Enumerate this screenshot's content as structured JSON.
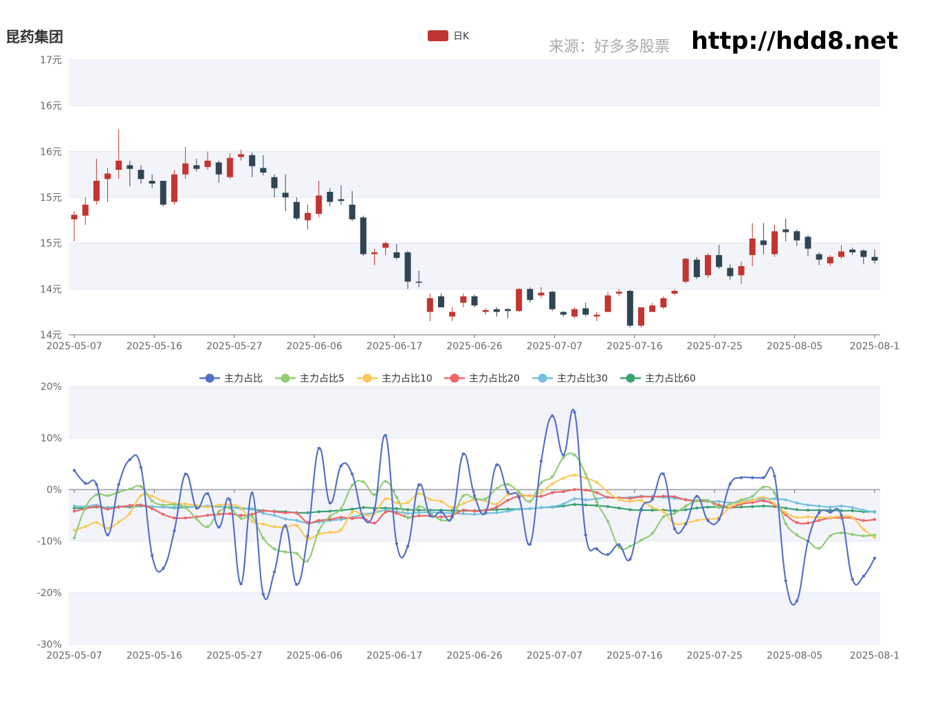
{
  "header": {
    "title": "昆药集团",
    "source": "来源：好多多股票",
    "url": "http://hdd8.net"
  },
  "colors": {
    "up": "#c23531",
    "down": "#2f4554",
    "band": "#f3f4fa",
    "grid": "#e0e6f1",
    "axis": "#6e7079"
  },
  "chart_data": [
    {
      "type": "candlestick",
      "legend": [
        "日K"
      ],
      "x_tick_labels": [
        "2025-05-07",
        "2025-05-16",
        "2025-05-27",
        "2025-06-06",
        "2025-06-17",
        "2025-06-26",
        "2025-07-07",
        "2025-07-16",
        "2025-07-25",
        "2025-08-05",
        "2025-08-1"
      ],
      "y_tick_labels": [
        "14元",
        "14元",
        "15元",
        "15元",
        "16元",
        "16元",
        "17元"
      ],
      "ylim": [
        13.9,
        16.9
      ],
      "candles": [
        [
          15.16,
          15.21,
          14.92,
          15.25
        ],
        [
          15.2,
          15.32,
          15.1,
          15.4
        ],
        [
          15.36,
          15.58,
          15.32,
          15.82
        ],
        [
          15.6,
          15.66,
          15.35,
          15.72
        ],
        [
          15.7,
          15.8,
          15.6,
          16.14
        ],
        [
          15.75,
          15.71,
          15.52,
          15.8
        ],
        [
          15.7,
          15.6,
          15.55,
          15.75
        ],
        [
          15.58,
          15.55,
          15.5,
          15.65
        ],
        [
          15.58,
          15.32,
          15.3,
          15.58
        ],
        [
          15.35,
          15.65,
          15.32,
          15.7
        ],
        [
          15.65,
          15.77,
          15.6,
          15.95
        ],
        [
          15.75,
          15.71,
          15.68,
          15.82
        ],
        [
          15.73,
          15.8,
          15.7,
          15.9
        ],
        [
          15.78,
          15.65,
          15.56,
          15.8
        ],
        [
          15.62,
          15.83,
          15.6,
          15.88
        ],
        [
          15.84,
          15.87,
          15.8,
          15.92
        ],
        [
          15.86,
          15.74,
          15.62,
          15.89
        ],
        [
          15.72,
          15.67,
          15.64,
          15.86
        ],
        [
          15.62,
          15.5,
          15.4,
          15.65
        ],
        [
          15.45,
          15.4,
          15.25,
          15.65
        ],
        [
          15.35,
          15.17,
          15.15,
          15.4
        ],
        [
          15.15,
          15.23,
          15.05,
          15.32
        ],
        [
          15.22,
          15.42,
          15.18,
          15.58
        ],
        [
          15.46,
          15.35,
          15.3,
          15.5
        ],
        [
          15.38,
          15.36,
          15.32,
          15.53
        ],
        [
          15.32,
          15.16,
          15.14,
          15.47
        ],
        [
          15.18,
          14.78,
          14.76,
          15.2
        ],
        [
          14.78,
          14.8,
          14.66,
          14.84
        ],
        [
          14.85,
          14.9,
          14.77,
          14.92
        ],
        [
          14.8,
          14.74,
          14.72,
          14.89
        ],
        [
          14.8,
          14.48,
          14.4,
          14.82
        ],
        [
          14.48,
          14.47,
          14.42,
          14.6
        ],
        [
          14.15,
          14.3,
          14.05,
          14.35
        ],
        [
          14.32,
          14.2,
          14.2,
          14.35
        ],
        [
          14.1,
          14.15,
          14.05,
          14.2
        ],
        [
          14.25,
          14.32,
          14.2,
          14.35
        ],
        [
          14.32,
          14.22,
          14.2,
          14.34
        ],
        [
          14.15,
          14.17,
          14.12,
          14.19
        ],
        [
          14.18,
          14.15,
          14.1,
          14.2
        ],
        [
          14.18,
          14.16,
          14.08,
          14.19
        ],
        [
          14.16,
          14.4,
          14.15,
          14.41
        ],
        [
          14.4,
          14.28,
          14.25,
          14.42
        ],
        [
          14.33,
          14.36,
          14.3,
          14.42
        ],
        [
          14.37,
          14.18,
          14.16,
          14.38
        ],
        [
          14.15,
          14.12,
          14.1,
          14.16
        ],
        [
          14.1,
          14.18,
          14.08,
          14.2
        ],
        [
          14.19,
          14.12,
          14.1,
          14.25
        ],
        [
          14.1,
          14.12,
          14.05,
          14.15
        ],
        [
          14.15,
          14.33,
          14.15,
          14.37
        ],
        [
          14.35,
          14.37,
          14.32,
          14.4
        ],
        [
          14.38,
          14.0,
          13.98,
          14.39
        ],
        [
          14.0,
          14.2,
          13.98,
          14.2
        ],
        [
          14.15,
          14.22,
          14.15,
          14.25
        ],
        [
          14.2,
          14.3,
          14.18,
          14.32
        ],
        [
          14.35,
          14.38,
          14.33,
          14.4
        ],
        [
          14.48,
          14.73,
          14.46,
          14.74
        ],
        [
          14.72,
          14.53,
          14.51,
          14.75
        ],
        [
          14.55,
          14.77,
          14.52,
          14.79
        ],
        [
          14.77,
          14.64,
          14.62,
          14.88
        ],
        [
          14.63,
          14.54,
          14.5,
          14.67
        ],
        [
          14.55,
          14.65,
          14.45,
          14.7
        ],
        [
          14.77,
          14.95,
          14.65,
          15.12
        ],
        [
          14.93,
          14.88,
          14.78,
          15.12
        ],
        [
          14.78,
          15.03,
          14.75,
          15.1
        ],
        [
          15.05,
          15.02,
          14.92,
          15.17
        ],
        [
          15.03,
          14.93,
          14.87,
          15.05
        ],
        [
          14.97,
          14.84,
          14.76,
          14.99
        ],
        [
          14.78,
          14.72,
          14.66,
          14.8
        ],
        [
          14.68,
          14.75,
          14.65,
          14.77
        ],
        [
          14.75,
          14.81,
          14.73,
          14.88
        ],
        [
          14.83,
          14.8,
          14.77,
          14.85
        ],
        [
          14.82,
          14.75,
          14.67,
          14.83
        ],
        [
          14.75,
          14.71,
          14.68,
          14.83
        ]
      ]
    },
    {
      "type": "line",
      "x_tick_labels": [
        "2025-05-07",
        "2025-05-16",
        "2025-05-27",
        "2025-06-06",
        "2025-06-17",
        "2025-06-26",
        "2025-07-07",
        "2025-07-16",
        "2025-07-25",
        "2025-08-05",
        "2025-08-1"
      ],
      "y_tick_labels": [
        "-30%",
        "-20%",
        "-10%",
        "0%",
        "10%",
        "20%"
      ],
      "ylim": [
        -30,
        20
      ],
      "series": [
        {
          "name": "主力占比",
          "color": "#5470c6",
          "values": [
            3.7,
            1.2,
            1.0,
            -8.8,
            1.0,
            5.8,
            4.3,
            -12.8,
            -15.3,
            -8.0,
            3.0,
            -3.6,
            -0.8,
            -7.3,
            -2.0,
            -18.3,
            -0.7,
            -20.3,
            -16.0,
            -7.0,
            -18.4,
            -9.0,
            8.0,
            -2.6,
            4.6,
            3.0,
            -5.4,
            -4.0,
            10.5,
            -10.5,
            -11.0,
            0.9,
            -5.0,
            -4.3,
            -5.3,
            6.9,
            -1.2,
            -4.5,
            4.8,
            -0.5,
            -1.5,
            -10.6,
            5.5,
            14.3,
            6.7,
            15.0,
            -8.8,
            -11.5,
            -12.6,
            -10.7,
            -13.5,
            -3.8,
            -1.9,
            3.0,
            -7.6,
            -6.7,
            -1.3,
            -6.0,
            -5.8,
            1.1,
            2.3,
            2.3,
            2.3,
            2.6,
            -17.7,
            -21.6,
            -10.0,
            -4.5,
            -4.4,
            -5.0,
            -17.4,
            -16.8,
            -13.3
          ]
        },
        {
          "name": "主力占比5",
          "color": "#91cc75",
          "values": [
            -9.4,
            -3.5,
            -1.0,
            -1.2,
            -0.5,
            0.1,
            0.6,
            -2.2,
            -3.0,
            -2.9,
            -3.5,
            -5.7,
            -7.2,
            -4.3,
            -3.6,
            -5.6,
            -5.3,
            -9.4,
            -11.5,
            -12.1,
            -12.4,
            -13.8,
            -8.0,
            -5.2,
            -3.7,
            0.8,
            1.5,
            -1.0,
            1.6,
            -1.5,
            -5.5,
            -3.3,
            -4.5,
            -5.9,
            -5.3,
            -1.2,
            -1.7,
            -1.8,
            0.2,
            1.0,
            -0.5,
            -2.3,
            1.3,
            2.5,
            6.2,
            6.7,
            3.0,
            -2.4,
            -6.2,
            -11.2,
            -11.0,
            -9.8,
            -8.5,
            -5.3,
            -4.6,
            -3.2,
            -2.2,
            -2.1,
            -3.5,
            -2.8,
            -2.0,
            -1.3,
            0.5,
            -0.7,
            -6.6,
            -8.8,
            -10.0,
            -11.4,
            -9.0,
            -8.4,
            -8.7,
            -9.0,
            -8.8
          ]
        },
        {
          "name": "主力占比10",
          "color": "#fac858",
          "values": [
            -7.9,
            -7.2,
            -6.4,
            -7.5,
            -6.3,
            -4.6,
            -1.2,
            -1.3,
            -2.2,
            -2.7,
            -2.8,
            -3.1,
            -3.4,
            -3.0,
            -2.9,
            -3.6,
            -6.2,
            -6.7,
            -7.2,
            -7.3,
            -7.0,
            -9.5,
            -8.6,
            -8.3,
            -7.8,
            -4.4,
            -4.9,
            -4.7,
            -1.8,
            -2.6,
            -2.5,
            -0.8,
            -1.9,
            -2.3,
            -3.5,
            -2.7,
            -2.0,
            -2.2,
            -2.8,
            -1.0,
            -0.8,
            -1.3,
            -0.5,
            1.1,
            2.2,
            2.8,
            2.2,
            1.4,
            -0.5,
            -1.9,
            -2.3,
            -2.1,
            -3.5,
            -4.3,
            -6.6,
            -6.5,
            -6.0,
            -5.7,
            -5.4,
            -3.4,
            -2.5,
            -2.1,
            -1.5,
            -2.8,
            -4.5,
            -5.4,
            -5.3,
            -5.4,
            -5.4,
            -5.2,
            -5.4,
            -7.7,
            -9.3
          ]
        },
        {
          "name": "主力占比20",
          "color": "#ee6666",
          "values": [
            -4.2,
            -3.7,
            -3.3,
            -3.8,
            -3.4,
            -3.1,
            -3.0,
            -3.7,
            -4.8,
            -5.5,
            -5.5,
            -5.3,
            -5.0,
            -4.8,
            -4.7,
            -5.0,
            -4.8,
            -4.1,
            -4.3,
            -4.5,
            -4.6,
            -6.4,
            -6.0,
            -5.8,
            -5.4,
            -5.6,
            -5.5,
            -6.5,
            -4.4,
            -4.6,
            -5.4,
            -5.1,
            -5.1,
            -5.3,
            -5.0,
            -4.0,
            -4.2,
            -4.0,
            -3.4,
            -2.1,
            -1.3,
            -1.2,
            -1.3,
            -0.6,
            -0.4,
            0.0,
            -0.1,
            -0.6,
            -1.5,
            -1.6,
            -1.7,
            -1.4,
            -1.4,
            -1.3,
            -1.4,
            -2.0,
            -2.2,
            -2.2,
            -3.0,
            -3.5,
            -2.8,
            -2.5,
            -2.2,
            -3.0,
            -4.9,
            -6.4,
            -6.5,
            -6.0,
            -5.5,
            -5.5,
            -5.5,
            -6.0,
            -5.8
          ]
        },
        {
          "name": "主力占比30",
          "color": "#73c0de",
          "values": [
            -3.2,
            -3.3,
            -3.0,
            -3.6,
            -3.3,
            -3.2,
            -3.1,
            -3.3,
            -3.4,
            -3.6,
            -3.5,
            -3.3,
            -3.2,
            -3.3,
            -3.4,
            -3.7,
            -3.7,
            -4.6,
            -5.0,
            -5.7,
            -6.0,
            -6.5,
            -6.3,
            -6.0,
            -5.8,
            -5.4,
            -4.8,
            -4.5,
            -4.0,
            -4.3,
            -4.6,
            -4.5,
            -4.4,
            -4.5,
            -4.6,
            -4.7,
            -4.8,
            -4.6,
            -4.5,
            -4.2,
            -3.8,
            -3.7,
            -3.5,
            -3.3,
            -2.8,
            -1.8,
            -2.0,
            -1.8,
            -1.5,
            -1.6,
            -1.5,
            -1.3,
            -1.4,
            -1.5,
            -1.7,
            -1.9,
            -2.2,
            -2.3,
            -2.3,
            -2.6,
            -2.3,
            -2.0,
            -1.8,
            -1.8,
            -2.0,
            -2.6,
            -3.0,
            -3.2,
            -3.4,
            -3.2,
            -3.5,
            -4.0,
            -4.4
          ]
        },
        {
          "name": "主力占比60",
          "color": "#3ba272",
          "values": [
            -3.6,
            -3.6,
            -3.4,
            -3.5,
            -3.3,
            -3.4,
            -3.2,
            -3.3,
            -3.4,
            -3.5,
            -3.4,
            -3.3,
            -3.3,
            -3.3,
            -3.4,
            -3.6,
            -3.8,
            -4.1,
            -4.2,
            -4.3,
            -4.5,
            -4.5,
            -4.3,
            -4.2,
            -4.0,
            -3.8,
            -3.5,
            -3.6,
            -3.6,
            -3.7,
            -3.9,
            -4.0,
            -4.0,
            -4.0,
            -4.1,
            -4.1,
            -4.1,
            -4.0,
            -3.9,
            -3.8,
            -3.8,
            -3.7,
            -3.5,
            -3.4,
            -3.2,
            -2.9,
            -3.0,
            -3.1,
            -3.3,
            -3.6,
            -3.9,
            -4.0,
            -4.0,
            -4.0,
            -4.1,
            -3.9,
            -3.6,
            -3.4,
            -3.4,
            -3.5,
            -3.4,
            -3.3,
            -3.2,
            -3.3,
            -3.6,
            -3.9,
            -4.0,
            -4.0,
            -4.0,
            -4.1,
            -4.1,
            -4.3,
            -4.3
          ]
        }
      ]
    }
  ]
}
